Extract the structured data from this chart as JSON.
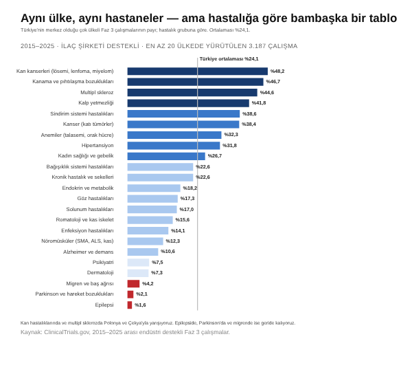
{
  "chart_data": {
    "type": "bar",
    "orientation": "horizontal",
    "title": "Aynı ülke, aynı hastaneler — ama hastalığa göre bambaşka bir tablo",
    "subtitle": "Türkiye'nin merkez olduğu çok ülkeli Faz 3 çalışmalarının payı; hastalık grubuna göre. Ortalaması %24,1.",
    "categories": [
      "Kan kanserleri (lösemi, lenfoma, miyelom)",
      "Kanama ve pıhtılaşma bozuklukları",
      "Multipl skleroz",
      "Kalp yetmezliği",
      "Sindirim sistemi hastalıkları",
      "Kanser (katı tümörler)",
      "Anemiler (talasemi, orak hücre)",
      "Hipertansiyon",
      "Kadın sağlığı ve gebelik",
      "Bağışıklık sistemi hastalıkları",
      "Kronik hastalık ve sekelleri",
      "Endokrin ve metabolik",
      "Göz hastalıkları",
      "Solunum hastalıkları",
      "Romatoloji ve kas iskelet",
      "Enfeksiyon hastalıkları",
      "Nöromüsküler (SMA, ALS, kas)",
      "Alzheimer ve demans",
      "Psikiyatri",
      "Dermatoloji",
      "Migren ve baş ağrısı",
      "Parkinson ve hareket bozuklukları",
      "Epilepsi"
    ],
    "values": [
      48.2,
      46.7,
      44.6,
      41.8,
      38.6,
      38.4,
      32.3,
      31.8,
      26.7,
      22.6,
      22.6,
      18.2,
      17.3,
      17.0,
      15.6,
      14.1,
      12.3,
      10.6,
      7.5,
      7.3,
      4.2,
      2.1,
      1.6
    ],
    "colors": [
      "#173a6e",
      "#173a6e",
      "#173a6e",
      "#173a6e",
      "#3a78c9",
      "#3a78c9",
      "#3a78c9",
      "#3a78c9",
      "#3a78c9",
      "#a9c8ef",
      "#a9c8ef",
      "#a9c8ef",
      "#a9c8ef",
      "#a9c8ef",
      "#a9c8ef",
      "#a9c8ef",
      "#a9c8ef",
      "#a9c8ef",
      "#dce8f8",
      "#dce8f8",
      "#c0282d",
      "#c0282d",
      "#c0282d"
    ],
    "value_labels": [
      "%48,2",
      "%46,7",
      "%44,6",
      "%41,8",
      "%38,6",
      "%38,4",
      "%32,3",
      "%31,8",
      "%26,7",
      "%22,6",
      "%22,6",
      "%18,2",
      "%17,3",
      "%17,0",
      "%15,6",
      "%14,1",
      "%12,3",
      "%10,6",
      "%7,5",
      "%7,3",
      "%4,2",
      "%2,1",
      "%1,6"
    ],
    "tick_labels": "y",
    "grid": false,
    "legend": false,
    "ref_lines": [
      {
        "axis": "x",
        "value": 24.1,
        "label": "Türkiye ortalaması %24,1",
        "color": "#bbbbbb"
      }
    ],
    "annotations": [
      "2015–2025 · İLAÇ ŞİRKETİ DESTEKLİ · EN AZ 20 ÜLKEDE YÜRÜTÜLEN 3.187 ÇALIŞMA",
      "Kan hastalıklarında ve multipl sklerozda Polonya ve Çekya'yla yarışıyoruz. Epilepside, Parkinson'da ve migrende ise geride kalıyoruz.",
      "Kaynak: ClinicalTrials.gov, 2015–2025 arası endüstri destekli Faz 3 çalışmalar."
    ]
  }
}
